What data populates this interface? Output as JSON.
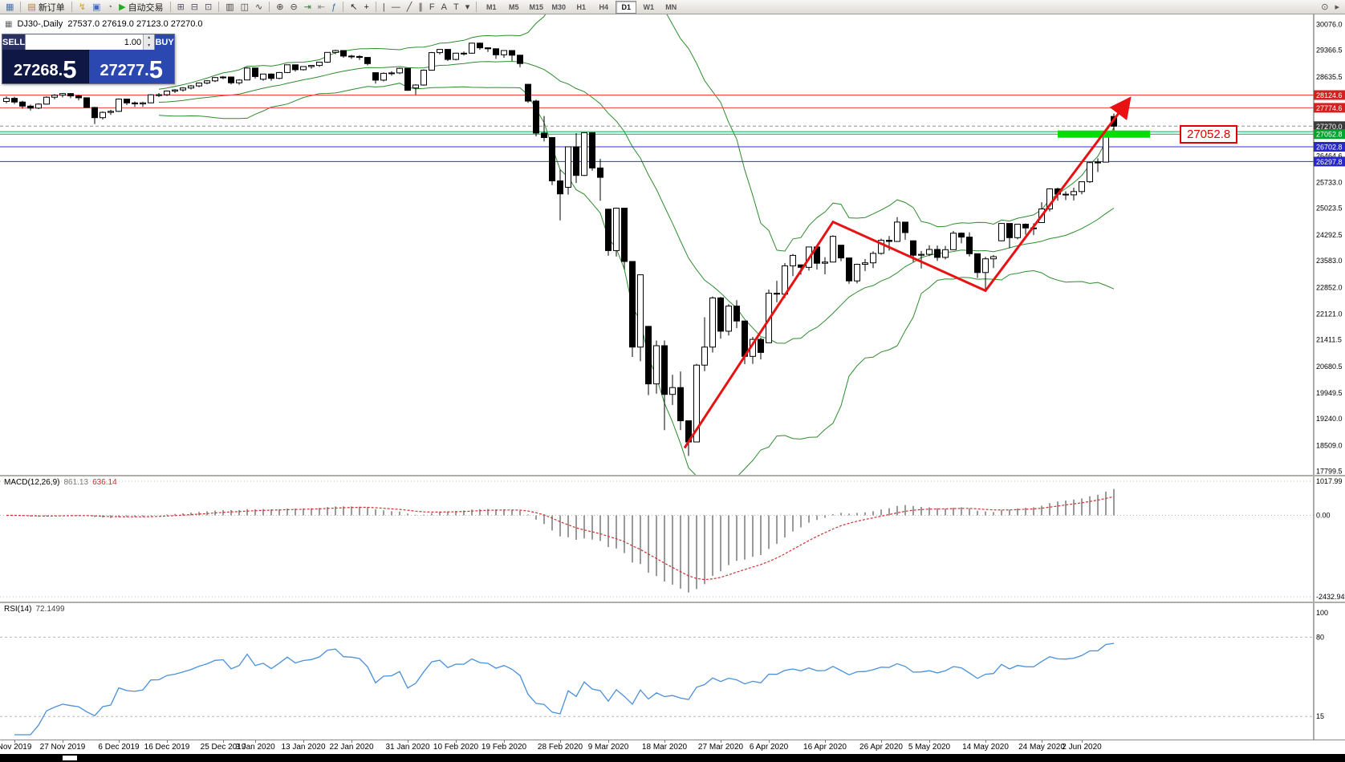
{
  "toolbar": {
    "icon_groups": [
      [
        {
          "name": "chart-window-icon",
          "glyph": "▦",
          "glyph_color": "#4a6fb0"
        }
      ],
      [
        {
          "name": "new-order-button",
          "glyph": "▤",
          "glyph_color": "#b08030",
          "label": "新订单"
        }
      ],
      [
        {
          "name": "favorites-icon",
          "glyph": "↯",
          "glyph_color": "#d4a017"
        },
        {
          "name": "accounts-icon",
          "glyph": "▣",
          "glyph_color": "#4169c8"
        },
        {
          "name": "alerts-icon",
          "glyph": "◔",
          "glyph_color": "#777777"
        },
        {
          "name": "auto-trading-button",
          "glyph": "▶",
          "glyph_color": "#22aa22",
          "label": "自动交易"
        }
      ],
      [
        {
          "name": "tile-windows-icon",
          "glyph": "⊞",
          "glyph_color": "#556"
        },
        {
          "name": "cascade-windows-icon",
          "glyph": "⊟",
          "glyph_color": "#556"
        },
        {
          "name": "arrange-windows-icon",
          "glyph": "⊡",
          "glyph_color": "#556"
        }
      ],
      [
        {
          "name": "bar-chart-icon",
          "glyph": "▥",
          "glyph_color": "#444"
        },
        {
          "name": "candlestick-chart-icon",
          "glyph": "◫",
          "glyph_color": "#444"
        },
        {
          "name": "line-chart-icon",
          "glyph": "∿",
          "glyph_color": "#444"
        }
      ],
      [
        {
          "name": "zoom-in-icon",
          "glyph": "⊕",
          "glyph_color": "#444"
        },
        {
          "name": "zoom-out-icon",
          "glyph": "⊖",
          "glyph_color": "#444"
        },
        {
          "name": "auto-scroll-icon",
          "glyph": "⇥",
          "glyph_color": "#3a7a3a"
        },
        {
          "name": "chart-shift-icon",
          "glyph": "⇤",
          "glyph_color": "#888"
        },
        {
          "name": "indicators-icon",
          "glyph": "ƒ",
          "glyph_color": "#2a6fb0"
        }
      ],
      [
        {
          "name": "cursor-icon",
          "glyph": "↖",
          "glyph_color": "#222"
        },
        {
          "name": "crosshair-icon",
          "glyph": "+",
          "glyph_color": "#222"
        }
      ],
      [
        {
          "name": "vertical-line-icon",
          "glyph": "|",
          "glyph_color": "#444"
        },
        {
          "name": "horizontal-line-icon",
          "glyph": "―",
          "glyph_color": "#444"
        },
        {
          "name": "trendline-icon",
          "glyph": "╱",
          "glyph_color": "#444"
        },
        {
          "name": "equidistant-channel-icon",
          "glyph": "∥",
          "glyph_color": "#444"
        },
        {
          "name": "fibonacci-icon",
          "glyph": "F",
          "glyph_color": "#444"
        },
        {
          "name": "text-icon",
          "glyph": "A",
          "glyph_color": "#444"
        },
        {
          "name": "label-icon",
          "glyph": "T",
          "glyph_color": "#444"
        },
        {
          "name": "shapes-dropdown-icon",
          "glyph": "▾",
          "glyph_color": "#444"
        }
      ]
    ],
    "timeframes": [
      "M1",
      "M5",
      "M15",
      "M30",
      "H1",
      "H4",
      "D1",
      "W1",
      "MN"
    ],
    "active_timeframe": "D1",
    "right_icons": [
      {
        "name": "search-icon",
        "glyph": "⊙",
        "glyph_color": "#555"
      },
      {
        "name": "panel-expand-icon",
        "glyph": "▸",
        "glyph_color": "#555"
      }
    ]
  },
  "symbol_bar": {
    "icon_glyph": "▦",
    "symbol": "DJ30-,Daily",
    "ohlc": "27537.0 27619.0 27123.0 27270.0"
  },
  "trade_panel": {
    "sell_label": "SELL",
    "buy_label": "BUY",
    "volume": "1.00",
    "spin_up": "▴",
    "spin_down": "▾",
    "sell_price_main": "27268.",
    "sell_price_big": "5",
    "buy_price_main": "27277.",
    "buy_price_big": "5"
  },
  "price_note": {
    "text": "27052.8"
  },
  "chart_data": {
    "type": "candlestick",
    "title": "DJ30-,Daily",
    "timeframe": "Daily",
    "price_range": [
      17799.5,
      30076.0
    ],
    "price_axis_labels": [
      30076.0,
      29366.5,
      28635.5,
      26464.6,
      25733.0,
      25023.5,
      24292.5,
      23583.0,
      22852.0,
      22121.0,
      21411.5,
      20680.5,
      19949.5,
      19240.0,
      18509.0,
      17799.5
    ],
    "price_tags": [
      {
        "value": "28124.6",
        "price": 28124.6,
        "color": "#d42020"
      },
      {
        "value": "27774.6",
        "price": 27774.6,
        "color": "#d42020"
      },
      {
        "value": "27270.0",
        "price": 27270.0,
        "color": "#3a3a3a"
      },
      {
        "value": "27052.8",
        "price": 27052.8,
        "color": "#00a32e"
      },
      {
        "value": "26702.8",
        "price": 26702.8,
        "color": "#2828c8"
      },
      {
        "value": "26297.8",
        "price": 26297.8,
        "color": "#2828c8"
      }
    ],
    "hlines": [
      {
        "price": 28124.6,
        "color": "#f04040",
        "width": 1,
        "dash": false
      },
      {
        "price": 27774.6,
        "color": "#f04040",
        "width": 1,
        "dash": false
      },
      {
        "price": 27270.0,
        "color": "#909090",
        "width": 1,
        "dash": true
      },
      {
        "price": 27120.0,
        "color": "#00b050",
        "width": 1,
        "dash": false
      },
      {
        "price": 27052.8,
        "color": "#00b050",
        "width": 1,
        "dash": false
      },
      {
        "price": 26702.8,
        "color": "#3030cc",
        "width": 1,
        "dash": false
      },
      {
        "price": 26297.8,
        "color": "#3030cc",
        "width": 1,
        "dash": false
      }
    ],
    "highlight_bar": {
      "price": 27052.8,
      "i1": 131,
      "i2": 142.5,
      "thickness": 9,
      "color": "#00e000"
    },
    "trend_arrow": {
      "color": "#e81212",
      "width": 3,
      "points": [
        [
          84.5,
          18430
        ],
        [
          103,
          24640
        ],
        [
          122,
          22750
        ],
        [
          139.8,
          27980
        ]
      ]
    },
    "date_labels": [
      {
        "label": "Nov 2019",
        "i": 1
      },
      {
        "label": "27 Nov 2019",
        "i": 7
      },
      {
        "label": "6 Dec 2019",
        "i": 14
      },
      {
        "label": "16 Dec 2019",
        "i": 20
      },
      {
        "label": "25 Dec 2019",
        "i": 27
      },
      {
        "label": "3 Jan 2020",
        "i": 31
      },
      {
        "label": "13 Jan 2020",
        "i": 37
      },
      {
        "label": "22 Jan 2020",
        "i": 43
      },
      {
        "label": "31 Jan 2020",
        "i": 50
      },
      {
        "label": "10 Feb 2020",
        "i": 56
      },
      {
        "label": "19 Feb 2020",
        "i": 62
      },
      {
        "label": "28 Feb 2020",
        "i": 69
      },
      {
        "label": "9 Mar 2020",
        "i": 75
      },
      {
        "label": "18 Mar 2020",
        "i": 82
      },
      {
        "label": "27 Mar 2020",
        "i": 89
      },
      {
        "label": "6 Apr 2020",
        "i": 95
      },
      {
        "label": "16 Apr 2020",
        "i": 102
      },
      {
        "label": "26 Apr 2020",
        "i": 109
      },
      {
        "label": "5 May 2020",
        "i": 115
      },
      {
        "label": "14 May 2020",
        "i": 122
      },
      {
        "label": "24 May 2020",
        "i": 129
      },
      {
        "label": "2 Jun 2020",
        "i": 134
      }
    ],
    "candles": [
      [
        27950,
        28090,
        27900,
        28036
      ],
      [
        28036,
        28080,
        27880,
        27934
      ],
      [
        27934,
        27970,
        27750,
        27821
      ],
      [
        27821,
        27860,
        27700,
        27766
      ],
      [
        27766,
        27900,
        27740,
        27876
      ],
      [
        27876,
        28090,
        27860,
        28066
      ],
      [
        28066,
        28150,
        28010,
        28121
      ],
      [
        28121,
        28180,
        28060,
        28164
      ],
      [
        28164,
        28180,
        28040,
        28102
      ],
      [
        28102,
        28130,
        27980,
        28051
      ],
      [
        28051,
        28060,
        27770,
        27783
      ],
      [
        27783,
        27800,
        27330,
        27503
      ],
      [
        27503,
        27680,
        27450,
        27650
      ],
      [
        27650,
        27720,
        27580,
        27678
      ],
      [
        27678,
        28030,
        27660,
        28015
      ],
      [
        28015,
        28020,
        27850,
        27910
      ],
      [
        27910,
        27950,
        27800,
        27882
      ],
      [
        27882,
        27940,
        27800,
        27912
      ],
      [
        27912,
        28150,
        27900,
        28132
      ],
      [
        28132,
        28180,
        28070,
        28135
      ],
      [
        28135,
        28250,
        28100,
        28235
      ],
      [
        28235,
        28290,
        28180,
        28267
      ],
      [
        28267,
        28340,
        28220,
        28319
      ],
      [
        28319,
        28400,
        28280,
        28376
      ],
      [
        28376,
        28470,
        28340,
        28455
      ],
      [
        28455,
        28540,
        28420,
        28515
      ],
      [
        28515,
        28620,
        28480,
        28605
      ],
      [
        28605,
        28650,
        28560,
        28621
      ],
      [
        28621,
        28630,
        28420,
        28462
      ],
      [
        28462,
        28560,
        28410,
        28538
      ],
      [
        28540,
        28890,
        28530,
        28868
      ],
      [
        28868,
        28870,
        28580,
        28634
      ],
      [
        28560,
        28710,
        28520,
        28703
      ],
      [
        28703,
        28720,
        28520,
        28583
      ],
      [
        28583,
        28760,
        28560,
        28745
      ],
      [
        28745,
        28960,
        28730,
        28956
      ],
      [
        28956,
        28960,
        28770,
        28823
      ],
      [
        28823,
        28910,
        28800,
        28907
      ],
      [
        28907,
        28950,
        28850,
        28939
      ],
      [
        28939,
        29040,
        28900,
        29030
      ],
      [
        29030,
        29300,
        29010,
        29297
      ],
      [
        29297,
        29370,
        29250,
        29348
      ],
      [
        29348,
        29350,
        29150,
        29196
      ],
      [
        29196,
        29230,
        29120,
        29186
      ],
      [
        29186,
        29220,
        29090,
        29160
      ],
      [
        29160,
        29170,
        28940,
        28989
      ],
      [
        28740,
        28750,
        28440,
        28535
      ],
      [
        28535,
        28750,
        28500,
        28722
      ],
      [
        28722,
        28780,
        28660,
        28734
      ],
      [
        28734,
        28880,
        28700,
        28859
      ],
      [
        28859,
        28860,
        28240,
        28256
      ],
      [
        28320,
        28420,
        28130,
        28400
      ],
      [
        28400,
        28830,
        28380,
        28808
      ],
      [
        28808,
        29310,
        28800,
        29291
      ],
      [
        29291,
        29390,
        29240,
        29380
      ],
      [
        29380,
        29390,
        29060,
        29103
      ],
      [
        29103,
        29290,
        29080,
        29277
      ],
      [
        29277,
        29320,
        29210,
        29276
      ],
      [
        29276,
        29560,
        29260,
        29551
      ],
      [
        29551,
        29570,
        29370,
        29423
      ],
      [
        29423,
        29430,
        29310,
        29398
      ],
      [
        29398,
        29400,
        29120,
        29232
      ],
      [
        29232,
        29360,
        29150,
        29348
      ],
      [
        29348,
        29350,
        29060,
        29220
      ],
      [
        29220,
        29230,
        28890,
        28992
      ],
      [
        28420,
        28430,
        27910,
        27961
      ],
      [
        27961,
        28000,
        26990,
        27081
      ],
      [
        27081,
        27550,
        26850,
        26958
      ],
      [
        26958,
        26970,
        25650,
        25767
      ],
      [
        25767,
        26080,
        24680,
        25409
      ],
      [
        25590,
        26710,
        25390,
        26703
      ],
      [
        26703,
        27080,
        25710,
        25917
      ],
      [
        25917,
        27100,
        25900,
        27091
      ],
      [
        27091,
        27100,
        26050,
        26121
      ],
      [
        26121,
        26370,
        25220,
        25865
      ],
      [
        24990,
        25000,
        23710,
        23851
      ],
      [
        23851,
        25030,
        23690,
        25018
      ],
      [
        25018,
        25020,
        23330,
        23553
      ],
      [
        23553,
        23560,
        20930,
        21200
      ],
      [
        21200,
        23190,
        20810,
        23186
      ],
      [
        21770,
        21780,
        19880,
        20188
      ],
      [
        20188,
        21380,
        19920,
        21237
      ],
      [
        21237,
        21380,
        18920,
        19899
      ],
      [
        19899,
        20440,
        19610,
        20087
      ],
      [
        20087,
        20530,
        18920,
        19174
      ],
      [
        19174,
        19180,
        18210,
        18592
      ],
      [
        18592,
        20740,
        18590,
        20705
      ],
      [
        20705,
        22020,
        20540,
        21200
      ],
      [
        21200,
        22590,
        21050,
        22552
      ],
      [
        22552,
        22580,
        21430,
        21637
      ],
      [
        21637,
        22380,
        21520,
        22327
      ],
      [
        22327,
        22490,
        21720,
        21917
      ],
      [
        21917,
        21920,
        20730,
        20944
      ],
      [
        20944,
        21480,
        20740,
        21413
      ],
      [
        21413,
        21460,
        20860,
        21053
      ],
      [
        21320,
        22780,
        21320,
        22680
      ],
      [
        22680,
        23020,
        22430,
        22654
      ],
      [
        22654,
        23510,
        22550,
        23434
      ],
      [
        23434,
        23760,
        23150,
        23719
      ],
      [
        23460,
        23470,
        23190,
        23391
      ],
      [
        23391,
        23960,
        23300,
        23950
      ],
      [
        23950,
        23960,
        23330,
        23504
      ],
      [
        23504,
        23670,
        23200,
        23537
      ],
      [
        23537,
        24270,
        23530,
        24242
      ],
      [
        24000,
        24010,
        23560,
        23650
      ],
      [
        23650,
        23660,
        22940,
        23018
      ],
      [
        23018,
        23490,
        22950,
        23476
      ],
      [
        23476,
        23620,
        23290,
        23515
      ],
      [
        23515,
        23830,
        23370,
        23775
      ],
      [
        23775,
        24180,
        23740,
        24134
      ],
      [
        24134,
        24250,
        23850,
        24102
      ],
      [
        24102,
        24770,
        24090,
        24634
      ],
      [
        24634,
        24640,
        24150,
        24346
      ],
      [
        24120,
        24130,
        23540,
        23724
      ],
      [
        23724,
        23840,
        23360,
        23749
      ],
      [
        23749,
        24000,
        23700,
        23883
      ],
      [
        23883,
        23990,
        23570,
        23665
      ],
      [
        23665,
        23980,
        23610,
        23876
      ],
      [
        23876,
        24390,
        23860,
        24331
      ],
      [
        24331,
        24350,
        24050,
        24222
      ],
      [
        24222,
        24350,
        23690,
        23765
      ],
      [
        23765,
        23770,
        23100,
        23248
      ],
      [
        23248,
        23680,
        22790,
        23625
      ],
      [
        23625,
        23730,
        23370,
        23685
      ],
      [
        24120,
        24600,
        24110,
        24597
      ],
      [
        24597,
        24600,
        23920,
        24207
      ],
      [
        24207,
        24580,
        24160,
        24576
      ],
      [
        24576,
        24600,
        24290,
        24474
      ],
      [
        24474,
        24600,
        24280,
        24465
      ],
      [
        24620,
        25180,
        24610,
        24995
      ],
      [
        24995,
        25560,
        24930,
        25548
      ],
      [
        25548,
        25580,
        25220,
        25401
      ],
      [
        25401,
        25480,
        25240,
        25383
      ],
      [
        25383,
        25580,
        25230,
        25475
      ],
      [
        25475,
        25750,
        25400,
        25743
      ],
      [
        25743,
        26290,
        25710,
        26270
      ],
      [
        26270,
        26390,
        26010,
        26282
      ],
      [
        26282,
        27120,
        26280,
        27111
      ],
      [
        27537,
        27619,
        27123,
        27270
      ]
    ],
    "indicators": {
      "bollinger": {
        "period": 20,
        "deviation": 2,
        "color": "#2e8b2e"
      },
      "macd": {
        "name": "MACD(12,26,9)",
        "value_main": "861.13",
        "value_signal": "636.14",
        "range": [
          -2432.94,
          1017.99
        ],
        "axis_labels": [
          "1017.99",
          "0.00",
          "-2432.94"
        ],
        "hist_color": "#9a9a9a",
        "signal_color": "#d03030"
      },
      "rsi": {
        "name": "RSI(14)",
        "value": "72.1499",
        "color": "#4a90d9",
        "levels": [
          80,
          15
        ],
        "axis_labels": [
          "100",
          "80",
          "15"
        ],
        "range": [
          0,
          100
        ]
      }
    }
  }
}
